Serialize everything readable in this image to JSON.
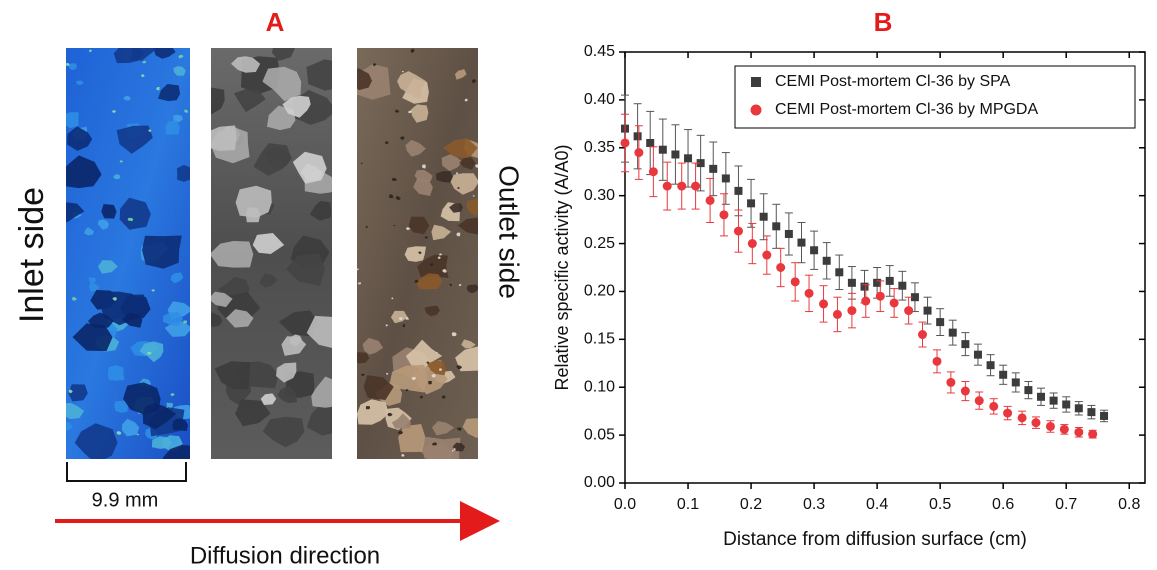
{
  "panel_a": {
    "label": "A",
    "left_label": "Inlet side",
    "right_label": "Outlet side",
    "scale_label": "9.9 mm",
    "arrow_label": "Diffusion direction"
  },
  "chart_data": {
    "type": "scatter",
    "panel_label": "B",
    "x_label": "Distance from diffusion surface (cm)",
    "y_label": "Relative specific activity (A/A0)",
    "xlim": [
      0,
      0.825
    ],
    "ylim": [
      0,
      0.45
    ],
    "xticks": [
      {
        "value": 0,
        "label": "0.0"
      },
      0.1,
      0.2,
      0.3,
      0.4,
      0.5,
      0.6,
      0.7,
      0.8
    ],
    "yticks": [
      {
        "value": 0,
        "label": "0.00"
      },
      0.05,
      {
        "value": 0.1,
        "label": "0.10"
      },
      0.15,
      {
        "value": 0.2,
        "label": "0.20"
      },
      0.25,
      {
        "value": 0.3,
        "label": "0.30"
      },
      0.35,
      {
        "value": 0.4,
        "label": "0.40"
      },
      0.45
    ],
    "legend": "upper right",
    "series": [
      {
        "name": "CEMI Post-mortem Cl-36 by SPA",
        "color": "#3c3c3c",
        "marker": "square",
        "x": [
          0,
          0.02,
          0.04,
          0.06,
          0.08,
          0.1,
          0.12,
          0.14,
          0.16,
          0.18,
          0.2,
          0.22,
          0.24,
          0.26,
          0.28,
          0.3,
          0.32,
          0.34,
          0.36,
          0.38,
          0.4,
          0.42,
          0.44,
          0.46,
          0.48,
          0.5,
          0.52,
          0.54,
          0.56,
          0.58,
          0.6,
          0.62,
          0.64,
          0.66,
          0.68,
          0.7,
          0.72,
          0.74,
          0.76
        ],
        "values": [
          0.37,
          0.362,
          0.355,
          0.348,
          0.343,
          0.339,
          0.334,
          0.328,
          0.318,
          0.305,
          0.292,
          0.278,
          0.268,
          0.26,
          0.251,
          0.243,
          0.232,
          0.22,
          0.209,
          0.205,
          0.209,
          0.211,
          0.206,
          0.194,
          0.18,
          0.168,
          0.157,
          0.145,
          0.134,
          0.123,
          0.113,
          0.105,
          0.097,
          0.09,
          0.086,
          0.082,
          0.078,
          0.074,
          0.07
        ],
        "errors": [
          0.035,
          0.034,
          0.033,
          0.032,
          0.031,
          0.03,
          0.029,
          0.028,
          0.027,
          0.026,
          0.025,
          0.024,
          0.023,
          0.022,
          0.021,
          0.02,
          0.019,
          0.018,
          0.017,
          0.017,
          0.016,
          0.016,
          0.015,
          0.015,
          0.014,
          0.014,
          0.013,
          0.012,
          0.011,
          0.011,
          0.01,
          0.01,
          0.009,
          0.009,
          0.008,
          0.008,
          0.007,
          0.007,
          0.006
        ]
      },
      {
        "name": "CEMI Post-mortem Cl-36 by MPGDA",
        "color": "#e8383d",
        "marker": "circle",
        "x": [
          0,
          0.022,
          0.045,
          0.067,
          0.09,
          0.112,
          0.135,
          0.157,
          0.18,
          0.202,
          0.225,
          0.247,
          0.27,
          0.292,
          0.315,
          0.337,
          0.36,
          0.382,
          0.405,
          0.427,
          0.45,
          0.472,
          0.495,
          0.517,
          0.54,
          0.562,
          0.585,
          0.607,
          0.63,
          0.652,
          0.675,
          0.697,
          0.72,
          0.742
        ],
        "values": [
          0.355,
          0.345,
          0.325,
          0.31,
          0.31,
          0.31,
          0.295,
          0.28,
          0.263,
          0.25,
          0.238,
          0.225,
          0.21,
          0.198,
          0.187,
          0.176,
          0.18,
          0.19,
          0.195,
          0.188,
          0.18,
          0.155,
          0.127,
          0.105,
          0.096,
          0.086,
          0.08,
          0.073,
          0.068,
          0.063,
          0.059,
          0.056,
          0.053,
          0.051
        ],
        "errors": [
          0.03,
          0.028,
          0.026,
          0.025,
          0.024,
          0.024,
          0.023,
          0.022,
          0.022,
          0.021,
          0.02,
          0.02,
          0.02,
          0.019,
          0.019,
          0.018,
          0.018,
          0.017,
          0.016,
          0.015,
          0.014,
          0.013,
          0.012,
          0.011,
          0.01,
          0.009,
          0.008,
          0.007,
          0.007,
          0.006,
          0.006,
          0.005,
          0.005,
          0.004
        ]
      }
    ]
  }
}
